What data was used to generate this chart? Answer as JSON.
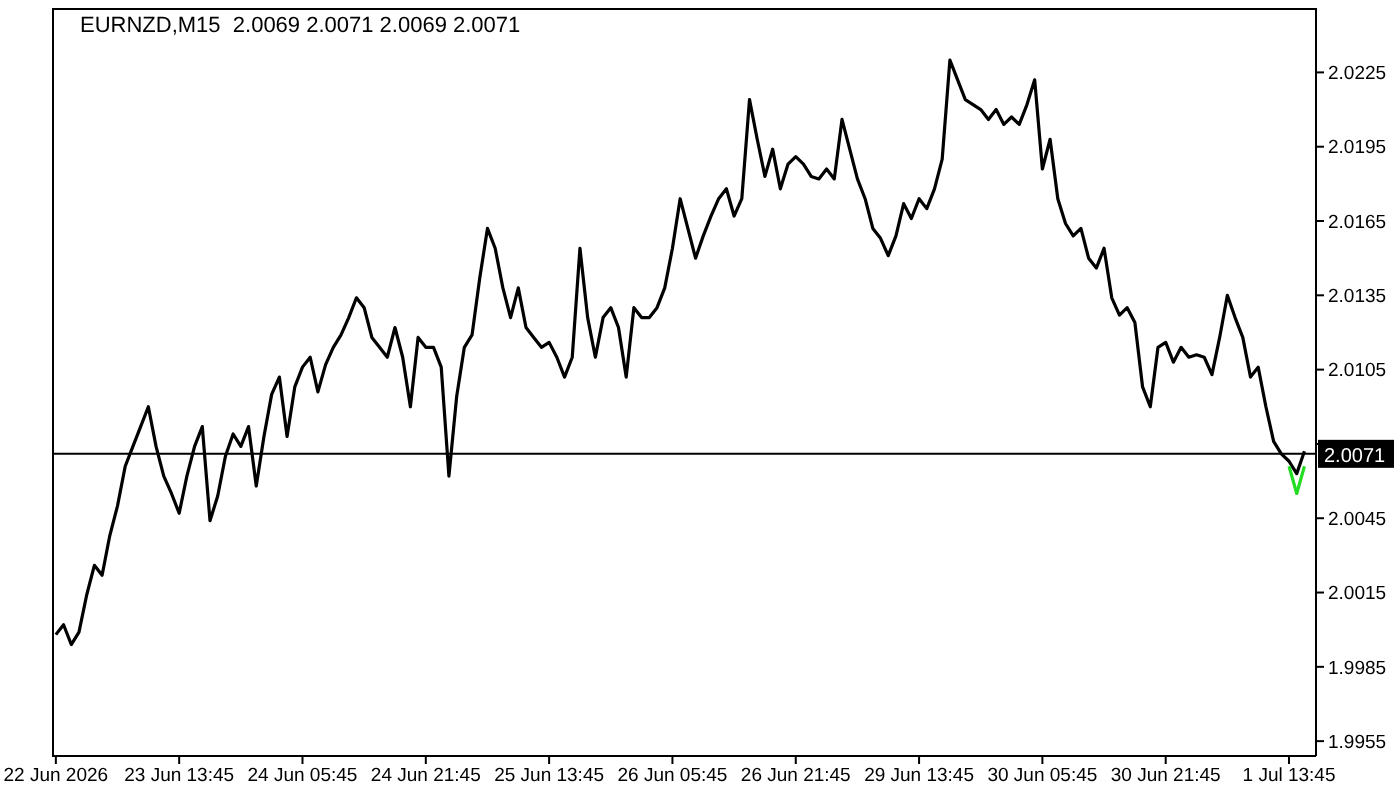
{
  "chart_data": {
    "type": "line",
    "title": "EURNZD,M15  2.0069 2.0071 2.0069 2.0071",
    "categories": [
      "22 Jun 2026",
      null,
      null,
      null,
      null,
      null,
      null,
      null,
      null,
      null,
      null,
      null,
      null,
      null,
      null,
      null,
      "23 Jun 13:45",
      null,
      null,
      null,
      null,
      null,
      null,
      null,
      null,
      null,
      null,
      null,
      null,
      null,
      null,
      null,
      "24 Jun 05:45",
      null,
      null,
      null,
      null,
      null,
      null,
      null,
      null,
      null,
      null,
      null,
      null,
      null,
      null,
      null,
      "24 Jun 21:45",
      null,
      null,
      null,
      null,
      null,
      null,
      null,
      null,
      null,
      null,
      null,
      null,
      null,
      null,
      null,
      "25 Jun 13:45",
      null,
      null,
      null,
      null,
      null,
      null,
      null,
      null,
      null,
      null,
      null,
      null,
      null,
      null,
      null,
      "26 Jun 05:45",
      null,
      null,
      null,
      null,
      null,
      null,
      null,
      null,
      null,
      null,
      null,
      null,
      null,
      null,
      null,
      "26 Jun 21:45",
      null,
      null,
      null,
      null,
      null,
      null,
      null,
      null,
      null,
      null,
      null,
      null,
      null,
      null,
      null,
      "29 Jun 13:45",
      null,
      null,
      null,
      null,
      null,
      null,
      null,
      null,
      null,
      null,
      null,
      null,
      null,
      null,
      null,
      "30 Jun 05:45",
      null,
      null,
      null,
      null,
      null,
      null,
      null,
      null,
      null,
      null,
      null,
      null,
      null,
      null,
      null,
      "30 Jun 21:45",
      null,
      null,
      null,
      null,
      null,
      null,
      null,
      null,
      null,
      null,
      null,
      null,
      null,
      null,
      null,
      "1 Jul 13:45",
      null,
      null,
      null
    ],
    "series": [
      {
        "color": "#000000",
        "values": [
          1.9998,
          2.0002,
          1.9994,
          1.9999,
          2.0014,
          2.0026,
          2.0022,
          2.0038,
          2.005,
          2.0066,
          2.0074,
          2.0082,
          2.009,
          2.0074,
          2.0062,
          2.0055,
          2.0047,
          2.0062,
          2.0074,
          2.0082,
          2.0044,
          2.0054,
          2.007,
          2.0079,
          2.0074,
          2.0082,
          2.0058,
          2.0078,
          2.0095,
          2.0102,
          2.0078,
          2.0098,
          2.0106,
          2.011,
          2.0096,
          2.0107,
          2.0114,
          2.0119,
          2.0126,
          2.0134,
          2.013,
          2.0118,
          2.0114,
          2.011,
          2.0122,
          2.011,
          2.009,
          2.0118,
          2.0114,
          2.0114,
          2.0106,
          2.0062,
          2.0094,
          2.0114,
          2.0119,
          2.0142,
          2.0162,
          2.0154,
          2.0138,
          2.0126,
          2.0138,
          2.0122,
          2.0118,
          2.0114,
          2.0116,
          2.011,
          2.0102,
          2.011,
          2.0154,
          2.0126,
          2.011,
          2.0126,
          2.013,
          2.0122,
          2.0102,
          2.013,
          2.0126,
          2.0126,
          2.013,
          2.0138,
          2.0154,
          2.0174,
          2.0162,
          2.015,
          2.0159,
          2.0167,
          2.0174,
          2.0178,
          2.0167,
          2.0174,
          2.0214,
          2.0198,
          2.0183,
          2.0194,
          2.0178,
          2.0188,
          2.0191,
          2.0188,
          2.0183,
          2.0182,
          2.0186,
          2.0182,
          2.0206,
          2.0194,
          2.0182,
          2.0174,
          2.0162,
          2.0158,
          2.0151,
          2.0159,
          2.0172,
          2.0166,
          2.0174,
          2.017,
          2.0178,
          2.019,
          2.023,
          2.0222,
          2.0214,
          2.0212,
          2.021,
          2.0206,
          2.021,
          2.0204,
          2.0207,
          2.0204,
          2.0212,
          2.0222,
          2.0186,
          2.0198,
          2.0174,
          2.0164,
          2.0159,
          2.0162,
          2.015,
          2.0146,
          2.0154,
          2.0134,
          2.0127,
          2.013,
          2.0124,
          2.0098,
          2.009,
          2.0114,
          2.0116,
          2.0108,
          2.0114,
          2.011,
          2.0111,
          2.011,
          2.0103,
          2.0118,
          2.0135,
          2.0126,
          2.0118,
          2.0102,
          2.0106,
          2.009,
          2.0076,
          2.0071,
          2.0068,
          2.0063,
          2.0072,
          null
        ]
      },
      {
        "color": "#22dd22",
        "values": [
          null,
          null,
          null,
          null,
          null,
          null,
          null,
          null,
          null,
          null,
          null,
          null,
          null,
          null,
          null,
          null,
          null,
          null,
          null,
          null,
          null,
          null,
          null,
          null,
          null,
          null,
          null,
          null,
          null,
          null,
          null,
          null,
          null,
          null,
          null,
          null,
          null,
          null,
          null,
          null,
          null,
          null,
          null,
          null,
          null,
          null,
          null,
          null,
          null,
          null,
          null,
          null,
          null,
          null,
          null,
          null,
          null,
          null,
          null,
          null,
          null,
          null,
          null,
          null,
          null,
          null,
          null,
          null,
          null,
          null,
          null,
          null,
          null,
          null,
          null,
          null,
          null,
          null,
          null,
          null,
          null,
          null,
          null,
          null,
          null,
          null,
          null,
          null,
          null,
          null,
          null,
          null,
          null,
          null,
          null,
          null,
          null,
          null,
          null,
          null,
          null,
          null,
          null,
          null,
          null,
          null,
          null,
          null,
          null,
          null,
          null,
          null,
          null,
          null,
          null,
          null,
          null,
          null,
          null,
          null,
          null,
          null,
          null,
          null,
          null,
          null,
          null,
          null,
          null,
          null,
          null,
          null,
          null,
          null,
          null,
          null,
          null,
          null,
          null,
          null,
          null,
          null,
          null,
          null,
          null,
          null,
          null,
          null,
          null,
          null,
          null,
          null,
          null,
          null,
          null,
          null,
          null,
          null,
          null,
          null,
          2.0066,
          2.0055,
          2.0066,
          null
        ]
      }
    ],
    "ylim": [
      1.9949,
      2.0251
    ],
    "yticks": [
      1.9955,
      1.9985,
      2.0015,
      2.0045,
      {
        "value": 2.0075,
        "label": null
      },
      2.0105,
      2.0135,
      2.0165,
      2.0195,
      2.0225
    ],
    "ref_lines": [
      {
        "axis": "y",
        "value": 2.0071,
        "label": "2.0071",
        "color": "#000000"
      }
    ],
    "grid": false,
    "legend": false
  }
}
